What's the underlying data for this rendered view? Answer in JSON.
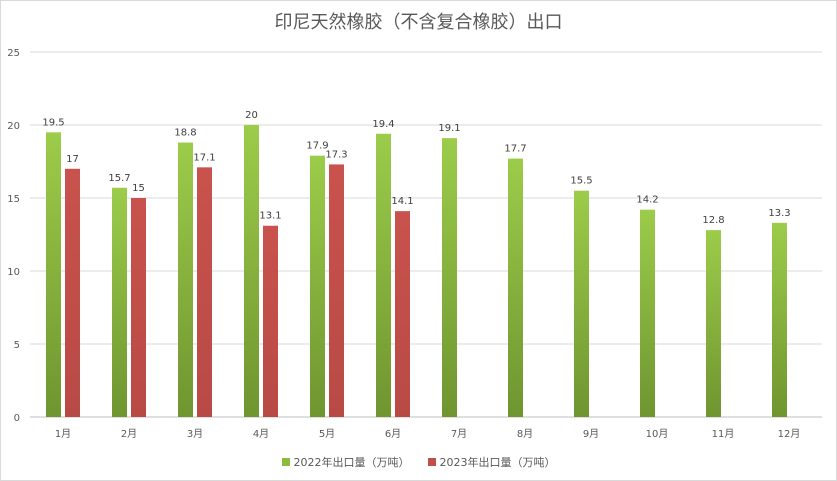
{
  "chart_data": {
    "type": "bar",
    "title": "印尼天然橡胶（不含复合橡胶）出口",
    "categories": [
      "1月",
      "2月",
      "3月",
      "4月",
      "5月",
      "6月",
      "7月",
      "8月",
      "9月",
      "10月",
      "11月",
      "12月"
    ],
    "series": [
      {
        "name": "2022年出口量（万吨）",
        "color": "#8dbb3d",
        "values": [
          19.5,
          15.7,
          18.8,
          20,
          17.9,
          19.4,
          19.1,
          17.7,
          15.5,
          14.2,
          12.8,
          13.3
        ]
      },
      {
        "name": "2023年出口量（万吨）",
        "color": "#c0504d",
        "values": [
          17,
          15,
          17.1,
          13.1,
          17.3,
          14.1,
          null,
          null,
          null,
          null,
          null,
          null
        ]
      }
    ],
    "ylim": [
      0,
      25
    ],
    "yticks": [
      0,
      5,
      10,
      15,
      20,
      25
    ],
    "grid": true,
    "legend_position": "bottom"
  }
}
